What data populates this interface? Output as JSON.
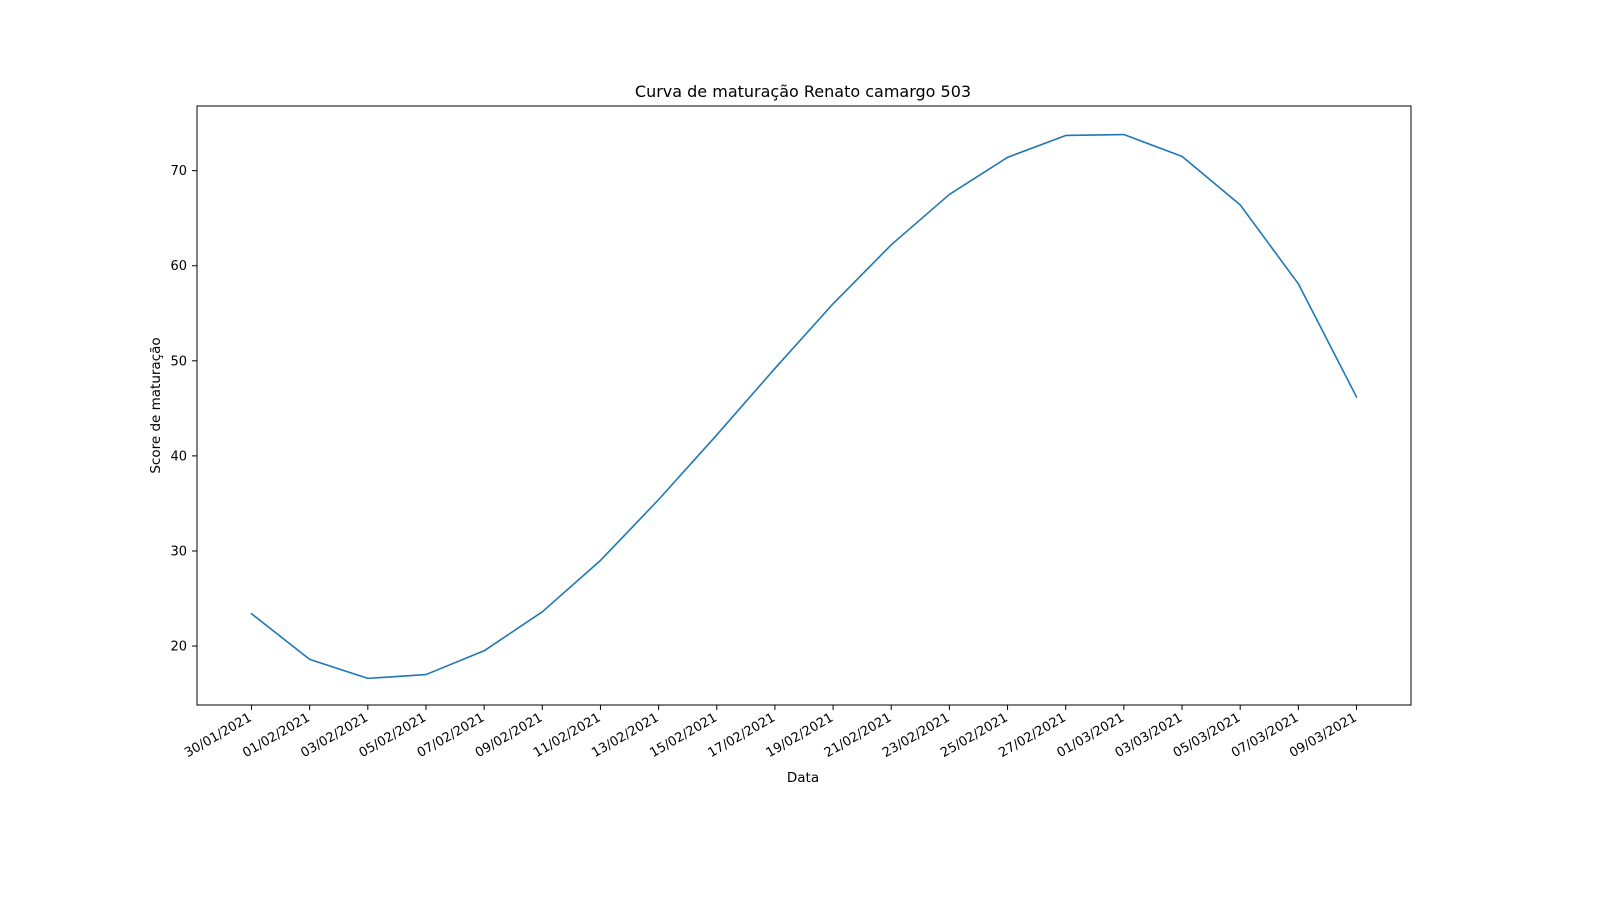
{
  "chart_data": {
    "type": "line",
    "title": "Curva de maturação Renato camargo 503",
    "xlabel": "Data",
    "ylabel": "Score de maturação",
    "x_ticks": [
      "30/01/2021",
      "01/02/2021",
      "03/02/2021",
      "05/02/2021",
      "07/02/2021",
      "09/02/2021",
      "11/02/2021",
      "13/02/2021",
      "15/02/2021",
      "17/02/2021",
      "19/02/2021",
      "21/02/2021",
      "23/02/2021",
      "25/02/2021",
      "27/02/2021",
      "01/03/2021",
      "03/03/2021",
      "05/03/2021",
      "07/03/2021",
      "09/03/2021"
    ],
    "y_ticks": [
      20,
      30,
      40,
      50,
      60,
      70
    ],
    "ylim": [
      13.8,
      76.8
    ],
    "x": [
      "30/01/2021",
      "01/02/2021",
      "03/02/2021",
      "05/02/2021",
      "07/02/2021",
      "09/02/2021",
      "11/02/2021",
      "13/02/2021",
      "15/02/2021",
      "17/02/2021",
      "19/02/2021",
      "21/02/2021",
      "23/02/2021",
      "25/02/2021",
      "27/02/2021",
      "01/03/2021",
      "03/03/2021",
      "05/03/2021",
      "07/03/2021",
      "09/03/2021"
    ],
    "series": [
      {
        "color": "#1f77b4",
        "values": [
          23.4,
          18.6,
          16.6,
          17.0,
          19.5,
          23.6,
          29.0,
          35.4,
          42.2,
          49.2,
          56.0,
          62.2,
          67.5,
          71.4,
          73.7,
          73.8,
          71.5,
          66.4,
          58.1,
          46.2
        ]
      }
    ],
    "grid": false,
    "legend": "none"
  }
}
